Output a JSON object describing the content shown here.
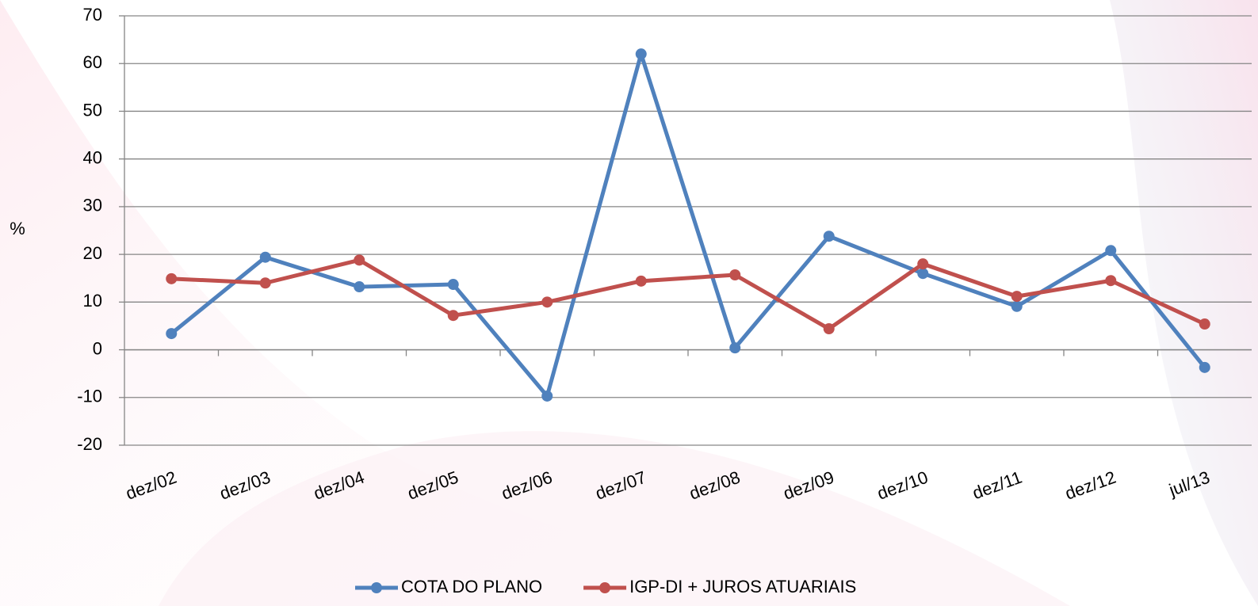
{
  "chart_data": {
    "type": "line",
    "y_label": "%",
    "categories": [
      "dez/02",
      "dez/03",
      "dez/04",
      "dez/05",
      "dez/06",
      "dez/07",
      "dez/08",
      "dez/09",
      "dez/10",
      "dez/11",
      "dez/12",
      "jul/13"
    ],
    "series": [
      {
        "name": "COTA DO PLANO",
        "color": "#4f81bd",
        "values": [
          3.4,
          19.4,
          13.2,
          13.7,
          -9.7,
          62.0,
          0.4,
          23.8,
          16.0,
          9.1,
          20.8,
          -3.7
        ]
      },
      {
        "name": "IGP-DI + JUROS ATUARIAIS",
        "color": "#c0504d",
        "values": [
          14.9,
          14.0,
          18.8,
          7.2,
          10.0,
          14.4,
          15.7,
          4.4,
          18.0,
          11.2,
          14.5,
          5.4
        ]
      }
    ],
    "ylim": [
      -20,
      70
    ],
    "yticks": [
      -20,
      -10,
      0,
      10,
      20,
      30,
      40,
      50,
      60,
      70
    ],
    "grid": true,
    "legend": "bottom"
  }
}
